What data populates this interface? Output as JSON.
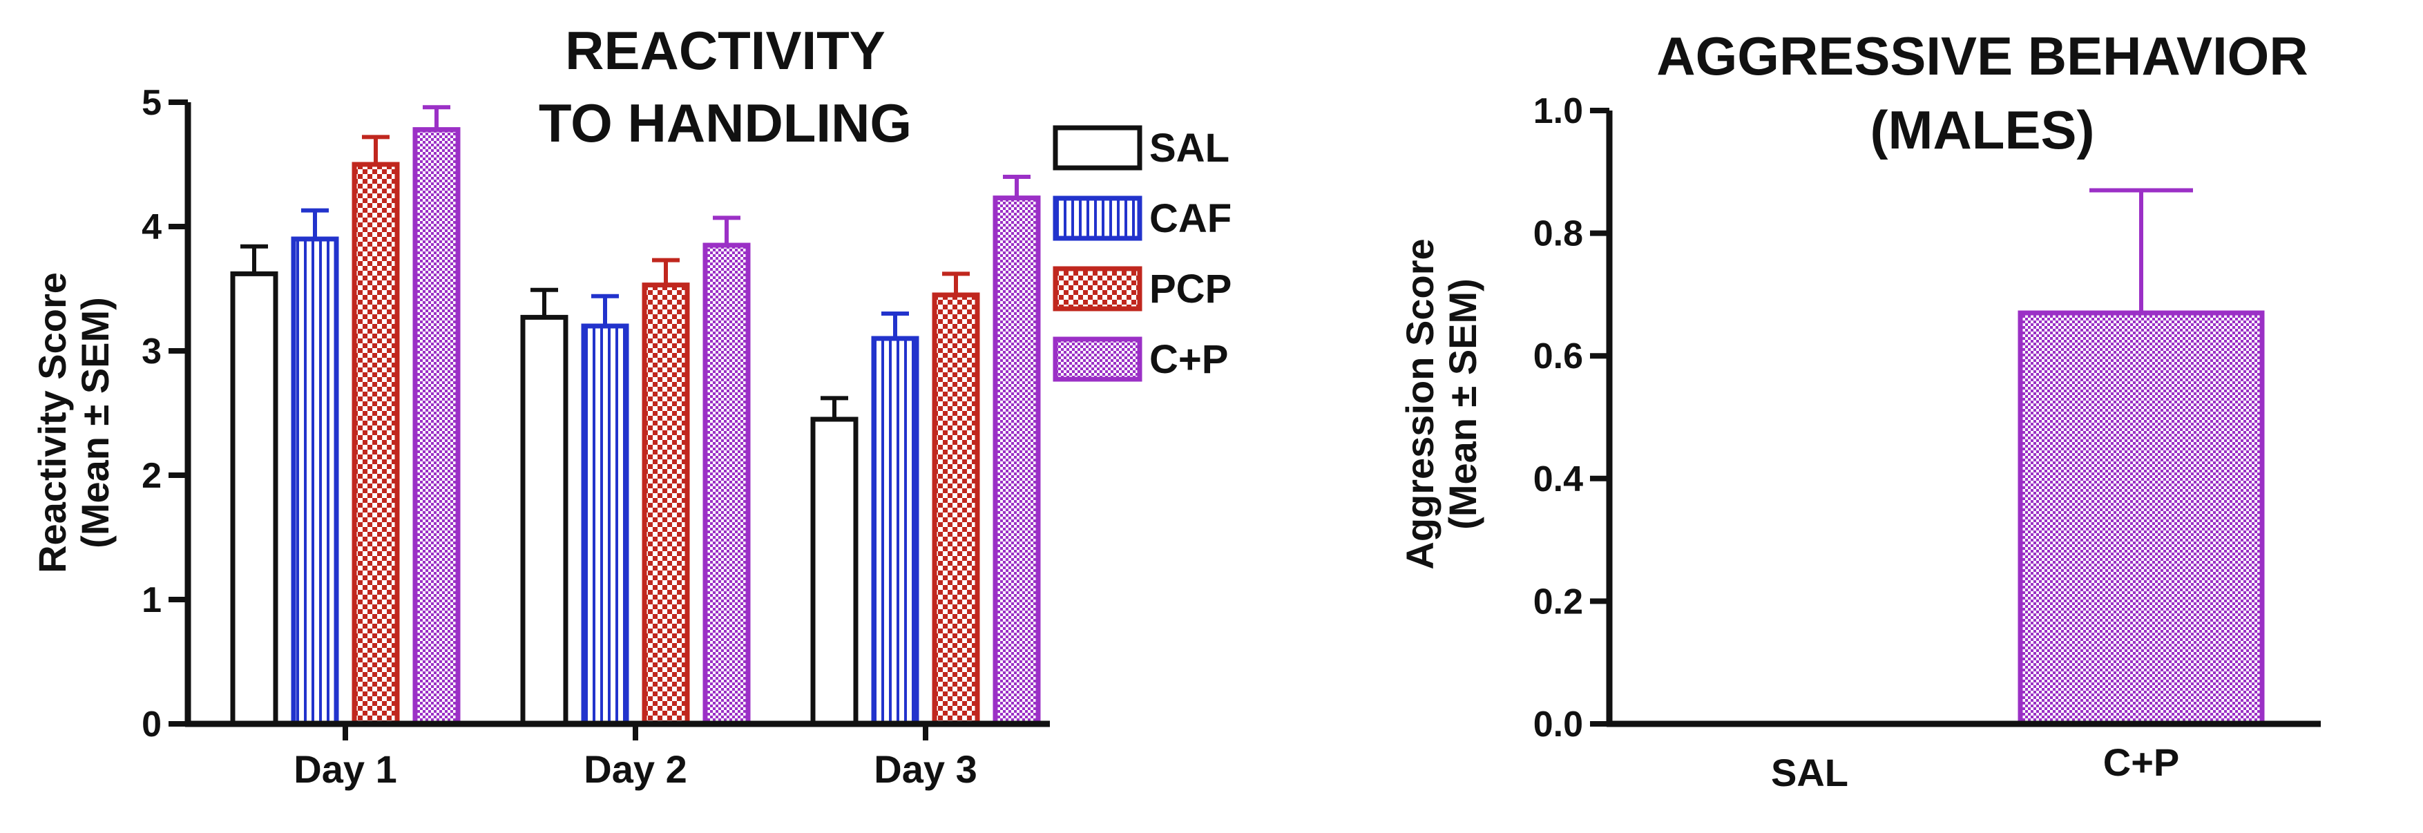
{
  "colors": {
    "SAL": "#111111",
    "CAF": "#2233cc",
    "PCP": "#c0271e",
    "C+P": "#9b30c6",
    "axis": "#111111"
  },
  "chart_data": [
    {
      "type": "bar",
      "title_lines": [
        "REACTIVITY",
        "TO HANDLING"
      ],
      "ylabel_lines": [
        "Reactivity Score",
        "(Mean ± SEM)"
      ],
      "xlabel": "",
      "categories": [
        "Day 1",
        "Day 2",
        "Day 3"
      ],
      "ylim": [
        0,
        5
      ],
      "yticks": [
        "0",
        "1",
        "2",
        "3",
        "4",
        "5"
      ],
      "series": [
        {
          "name": "SAL",
          "pattern": "none",
          "values": [
            3.62,
            3.27,
            2.45
          ],
          "errors": [
            0.22,
            0.22,
            0.17
          ]
        },
        {
          "name": "CAF",
          "pattern": "stripes",
          "values": [
            3.9,
            3.2,
            3.1
          ],
          "errors": [
            0.23,
            0.24,
            0.2
          ]
        },
        {
          "name": "PCP",
          "pattern": "checker",
          "values": [
            4.5,
            3.53,
            3.45
          ],
          "errors": [
            0.22,
            0.2,
            0.17
          ]
        },
        {
          "name": "C+P",
          "pattern": "fine",
          "values": [
            4.78,
            3.85,
            4.23
          ],
          "errors": [
            0.18,
            0.22,
            0.17
          ]
        }
      ],
      "legend": [
        "SAL",
        "CAF",
        "PCP",
        "C+P"
      ]
    },
    {
      "type": "bar",
      "title_lines": [
        "AGGRESSIVE BEHAVIOR",
        "(MALES)"
      ],
      "ylabel_lines": [
        "Aggression Score",
        "(Mean ± SEM)"
      ],
      "xlabel": "",
      "categories": [
        "SAL",
        "C+P"
      ],
      "ylim": [
        0,
        1.0
      ],
      "yticks": [
        "0.0",
        "0.2",
        "0.4",
        "0.6",
        "0.8",
        "1.0"
      ],
      "values": [
        0.0,
        0.67
      ],
      "errors": [
        0.0,
        0.2
      ],
      "series_names": [
        "SAL",
        "C+P"
      ]
    }
  ]
}
